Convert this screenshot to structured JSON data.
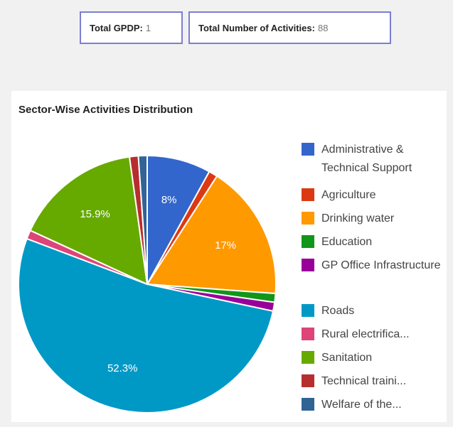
{
  "stats": {
    "gpdp_label": "Total GPDP:",
    "gpdp_value": "1",
    "activities_label": "Total Number of Activities:",
    "activities_value": "88"
  },
  "chart_data": {
    "type": "pie",
    "title": "Sector-Wise Activities Distribution",
    "legend_position": "right",
    "slices": [
      {
        "label": "Administrative & Technical Support",
        "value": 8.0,
        "color": "#3366cc",
        "data_label": "8%"
      },
      {
        "label": "Agriculture",
        "value": 1.1,
        "color": "#dc3912",
        "data_label": ""
      },
      {
        "label": "Drinking water",
        "value": 17.0,
        "color": "#ff9900",
        "data_label": "17%"
      },
      {
        "label": "Education",
        "value": 1.1,
        "color": "#109618",
        "data_label": ""
      },
      {
        "label": "GP Office Infrastructure",
        "value": 1.1,
        "color": "#990099",
        "data_label": ""
      },
      {
        "label": "Roads",
        "value": 52.3,
        "color": "#0099c6",
        "data_label": "52.3%"
      },
      {
        "label": "Rural electrifica...",
        "value": 1.1,
        "color": "#dd4477",
        "data_label": ""
      },
      {
        "label": "Sanitation",
        "value": 15.9,
        "color": "#66aa00",
        "data_label": "15.9%"
      },
      {
        "label": "Technical traini...",
        "value": 1.1,
        "color": "#b82e2e",
        "data_label": ""
      },
      {
        "label": "Welfare of the...",
        "value": 1.1,
        "color": "#316395",
        "data_label": ""
      }
    ]
  }
}
